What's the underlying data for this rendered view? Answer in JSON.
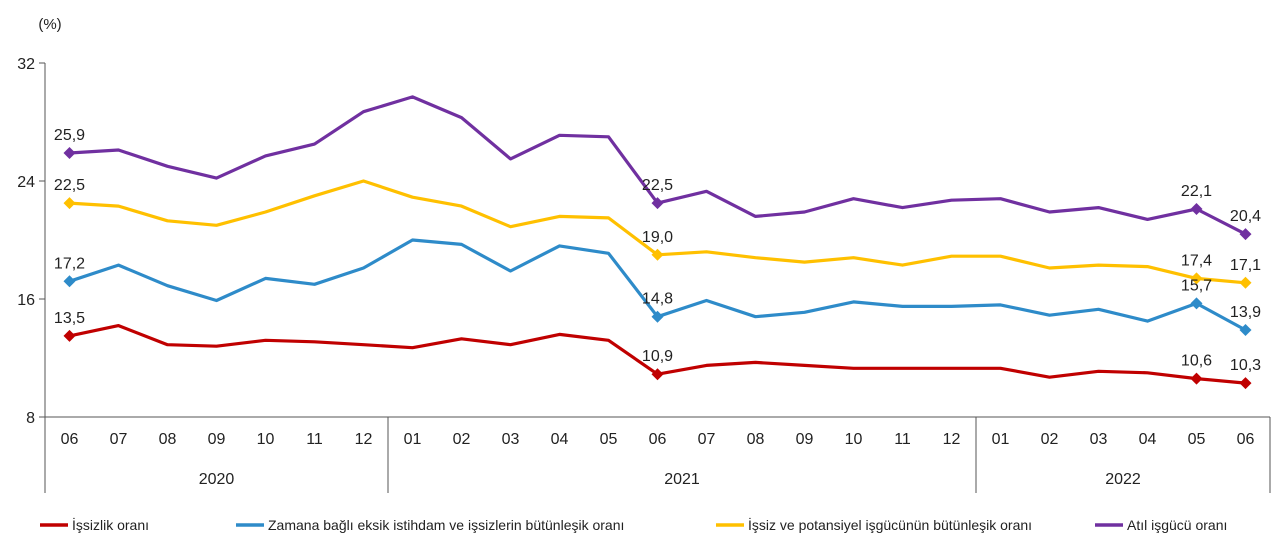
{
  "chart_data": {
    "type": "line",
    "y_unit_label": "(%)",
    "ylim": [
      8,
      32
    ],
    "yticks": [
      8,
      16,
      24,
      32
    ],
    "grid": false,
    "legend_position": "bottom",
    "categories": [
      "06",
      "07",
      "08",
      "09",
      "10",
      "11",
      "12",
      "01",
      "02",
      "03",
      "04",
      "05",
      "06",
      "07",
      "08",
      "09",
      "10",
      "11",
      "12",
      "01",
      "02",
      "03",
      "04",
      "05",
      "06"
    ],
    "year_groups": [
      {
        "label": "2020",
        "count": 7
      },
      {
        "label": "2021",
        "count": 12
      },
      {
        "label": "2022",
        "count": 6
      }
    ],
    "series": [
      {
        "name": "İşsizlik oranı",
        "color": "#c00000",
        "values": [
          13.5,
          14.2,
          12.9,
          12.8,
          13.2,
          13.1,
          12.9,
          12.7,
          13.3,
          12.9,
          13.6,
          13.2,
          10.9,
          11.5,
          11.7,
          11.5,
          11.3,
          11.3,
          11.3,
          11.3,
          10.7,
          11.1,
          11.0,
          10.6,
          10.3
        ],
        "labels": {
          "0": "13,5",
          "12": "10,9",
          "23": "10,6",
          "24": "10,3"
        },
        "markers": [
          0,
          12,
          23,
          24
        ]
      },
      {
        "name": "Zamana bağlı eksik istihdam ve işsizlerin bütünleşik oranı",
        "color": "#2e8bc9",
        "values": [
          17.2,
          18.3,
          16.9,
          15.9,
          17.4,
          17.0,
          18.1,
          20.0,
          19.7,
          17.9,
          19.6,
          19.1,
          14.8,
          15.9,
          14.8,
          15.1,
          15.8,
          15.5,
          15.5,
          15.6,
          14.9,
          15.3,
          14.5,
          15.7,
          13.9
        ],
        "labels": {
          "0": "17,2",
          "12": "14,8",
          "23": "15,7",
          "24": "13,9"
        },
        "markers": [
          0,
          12,
          23,
          24
        ]
      },
      {
        "name": "İşsiz ve potansiyel işgücünün bütünleşik oranı",
        "color": "#ffc000",
        "values": [
          22.5,
          22.3,
          21.3,
          21.0,
          21.9,
          23.0,
          24.0,
          22.9,
          22.3,
          20.9,
          21.6,
          21.5,
          19.0,
          19.2,
          18.8,
          18.5,
          18.8,
          18.3,
          18.9,
          18.9,
          18.1,
          18.3,
          18.2,
          17.4,
          17.1
        ],
        "labels": {
          "0": "22,5",
          "12": "19,0",
          "23": "17,4",
          "24": "17,1"
        },
        "markers": [
          0,
          12,
          23,
          24
        ]
      },
      {
        "name": "Atıl işgücü oranı",
        "color": "#7030a0",
        "values": [
          25.9,
          26.1,
          25.0,
          24.2,
          25.7,
          26.5,
          28.7,
          29.7,
          28.3,
          25.5,
          27.1,
          27.0,
          22.5,
          23.3,
          21.6,
          21.9,
          22.8,
          22.2,
          22.7,
          22.8,
          21.9,
          22.2,
          21.4,
          22.1,
          20.4
        ],
        "labels": {
          "0": "25,9",
          "12": "22,5",
          "23": "22,1",
          "24": "20,4"
        },
        "markers": [
          0,
          12,
          23,
          24
        ]
      }
    ]
  }
}
